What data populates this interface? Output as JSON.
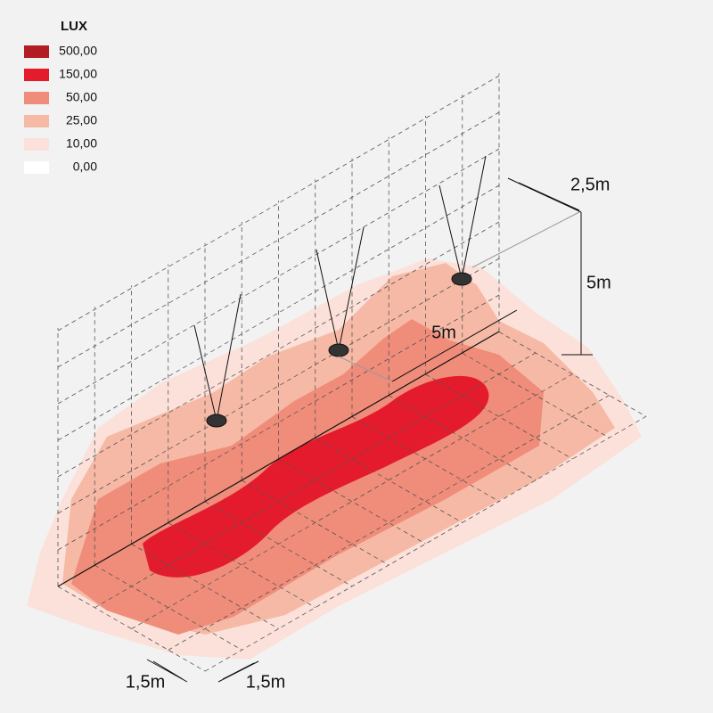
{
  "legend": {
    "title": "LUX",
    "items": [
      {
        "label": "500,00",
        "color": "#b01e23"
      },
      {
        "label": "150,00",
        "color": "#e31b2d"
      },
      {
        "label": "50,00",
        "color": "#f08c7a"
      },
      {
        "label": "25,00",
        "color": "#f6b9a5"
      },
      {
        "label": "10,00",
        "color": "#fbe1d9"
      },
      {
        "label": "0,00",
        "color": "#ffffff"
      }
    ]
  },
  "dimensions": {
    "width": "2,5m",
    "height": "5m",
    "spacing": "5m",
    "grid_x": "1,5m",
    "grid_y": "1,5m"
  }
}
